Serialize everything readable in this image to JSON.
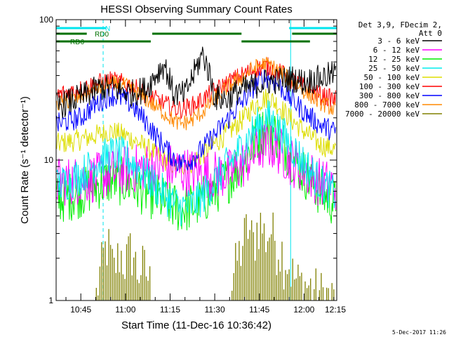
{
  "chart_data": {
    "type": "line",
    "title": "HESSI Observing Summary Count Rates",
    "xlabel": "Start Time (11-Dec-16 10:36:42)",
    "ylabel": "Count Rate (s⁻¹ detector⁻¹)",
    "y_scale": "log",
    "ylim": [
      1,
      100
    ],
    "xlim_minutes": [
      636.7,
      731
    ],
    "x_ticks": [
      "10:45",
      "11:00",
      "11:15",
      "11:30",
      "11:45",
      "12:00",
      "12:15"
    ],
    "x_tick_minutes": [
      645,
      660,
      675,
      690,
      705,
      720,
      735
    ],
    "y_ticks": [
      "1",
      "10",
      "100"
    ],
    "legend_header": [
      "Det 3,9, FDecim 2,",
      "Att 0"
    ],
    "legend_placement": "right",
    "footer_date": "5-Dec-2017 11:26",
    "flags": [
      {
        "label": "N",
        "color": "#00e5ee",
        "segments": [
          [
            636.7,
            653.5
          ],
          [
            715,
            731
          ]
        ]
      },
      {
        "label": "RD0",
        "color": "#007000",
        "segments": [
          [
            636.7,
            647
          ],
          [
            669,
            699
          ],
          [
            716,
            731
          ]
        ]
      },
      {
        "label": "RD6",
        "color": "#007000",
        "segments": [
          [
            636.7,
            668.5
          ],
          [
            699,
            722
          ]
        ]
      }
    ],
    "vertical_lines": [
      {
        "minute": 652.5,
        "style": "dashed",
        "color": "#00e5ee"
      },
      {
        "minute": 715.5,
        "style": "solid",
        "color": "#00e5ee"
      },
      {
        "minute": 731,
        "style": "dashed",
        "color": "#00e5ee"
      }
    ],
    "series": [
      {
        "name": "3 - 6 keV",
        "color": "#000000",
        "x": [
          637,
          645,
          652,
          657,
          662,
          667,
          670,
          673,
          676,
          680,
          683,
          686,
          690,
          694,
          698,
          702,
          707,
          712,
          716,
          720,
          725,
          730
        ],
        "y": [
          24,
          28,
          33,
          32,
          30,
          32,
          40,
          48,
          30,
          29,
          41,
          57,
          28,
          27,
          31,
          33,
          36,
          37,
          38,
          36,
          38,
          41
        ]
      },
      {
        "name": "6 - 12 keV",
        "color": "#ff00ff",
        "x": [
          637,
          645,
          650,
          655,
          660,
          665,
          670,
          675,
          678,
          682,
          686,
          690,
          695,
          700,
          703,
          706,
          708,
          711,
          715,
          720,
          725,
          730
        ],
        "y": [
          7.0,
          7.2,
          7.5,
          8.0,
          8.5,
          8.8,
          9.0,
          8.8,
          8.5,
          8.2,
          8.0,
          7.8,
          8.0,
          9.5,
          11,
          12.5,
          13,
          12,
          10,
          8.5,
          7.0,
          6.5
        ]
      },
      {
        "name": "12 - 25 keV",
        "color": "#00ee00",
        "x": [
          637,
          645,
          650,
          655,
          660,
          665,
          670,
          675,
          678,
          682,
          686,
          690,
          695,
          700,
          703,
          706,
          708,
          711,
          715,
          720,
          725,
          730
        ],
        "y": [
          5.2,
          5.8,
          6.5,
          7.2,
          7.0,
          6.2,
          5.5,
          4.8,
          4.5,
          4.6,
          5.2,
          6.0,
          7.5,
          10,
          13,
          16,
          17,
          15,
          11,
          8.0,
          6.0,
          5.0
        ]
      },
      {
        "name": "25 - 50 keV",
        "color": "#00eeee",
        "x": [
          637,
          645,
          650,
          655,
          660,
          665,
          670,
          675,
          678,
          682,
          686,
          690,
          695,
          700,
          703,
          706,
          708,
          711,
          715,
          720,
          725,
          730
        ],
        "y": [
          6.5,
          7.8,
          9.5,
          11,
          10.5,
          8.5,
          6.5,
          5.2,
          4.6,
          4.7,
          5.5,
          7.0,
          9.5,
          13,
          16,
          19,
          20,
          17,
          13,
          9.5,
          7.0,
          5.8
        ]
      },
      {
        "name": "50 - 100 keV",
        "color": "#dddd00",
        "x": [
          637,
          645,
          650,
          655,
          660,
          665,
          670,
          675,
          678,
          682,
          686,
          690,
          695,
          700,
          703,
          706,
          708,
          711,
          715,
          720,
          725,
          730
        ],
        "y": [
          13,
          14,
          15,
          16,
          15,
          13,
          11,
          9.5,
          9.0,
          9.5,
          11,
          13,
          16,
          20,
          24,
          27,
          28,
          25,
          20,
          16,
          13,
          12
        ]
      },
      {
        "name": "100 - 300 keV",
        "color": "#ff0000",
        "x": [
          637,
          645,
          650,
          655,
          660,
          665,
          670,
          675,
          678,
          682,
          686,
          690,
          695,
          700,
          703,
          706,
          708,
          711,
          715,
          720,
          725,
          730
        ],
        "y": [
          29,
          32,
          35,
          37,
          35,
          31,
          27,
          24,
          23,
          24,
          27,
          31,
          36,
          41,
          44,
          46,
          46,
          43,
          38,
          33,
          29,
          27
        ]
      },
      {
        "name": "300 - 800 keV",
        "color": "#0000ff",
        "x": [
          637,
          645,
          650,
          655,
          660,
          665,
          670,
          675,
          678,
          682,
          686,
          690,
          695,
          700,
          703,
          706,
          708,
          711,
          715,
          720,
          725,
          730
        ],
        "y": [
          18,
          20,
          25,
          29,
          27,
          21,
          15,
          11,
          9.5,
          10,
          12,
          15,
          20,
          27,
          33,
          38,
          39,
          35,
          28,
          22,
          18,
          16
        ]
      },
      {
        "name": "800 - 7000 keV",
        "color": "#ff8800",
        "x": [
          637,
          645,
          650,
          655,
          660,
          665,
          670,
          675,
          678,
          682,
          686,
          690,
          695,
          700,
          703,
          706,
          708,
          711,
          715,
          720,
          725,
          730
        ],
        "y": [
          25,
          28,
          32,
          35,
          34,
          29,
          24,
          20,
          18,
          19,
          22,
          27,
          34,
          40,
          45,
          48,
          48,
          44,
          38,
          31,
          26,
          23
        ]
      },
      {
        "name": "7000 - 20000 keV",
        "color": "#808000",
        "x": [
          637,
          650,
          652,
          654,
          656,
          658,
          660,
          662,
          664,
          666,
          668,
          670,
          695,
          697,
          699,
          701,
          703,
          705,
          707,
          709,
          711,
          713,
          715,
          717,
          731
        ],
        "y": [
          1,
          1,
          1.8,
          2.6,
          1.6,
          2.2,
          1.9,
          2.4,
          1.6,
          1.8,
          1.4,
          1,
          1,
          1.8,
          2.4,
          3.4,
          2.6,
          3.8,
          2.8,
          3.2,
          2.6,
          2.2,
          1.8,
          1.4,
          1
        ]
      }
    ]
  }
}
